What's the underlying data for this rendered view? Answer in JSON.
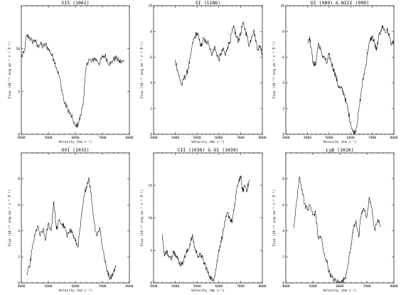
{
  "figure": {
    "xlabel": "Velocity (km s⁻¹)",
    "ylabel": "Flux (10⁻¹³ erg cm⁻² s⁻¹ Å⁻¹)"
  },
  "chart_data": [
    {
      "type": "line",
      "title": "SII (1061)",
      "xlim": [
        4000,
        8000
      ],
      "ylim": [
        0,
        15
      ],
      "xticks": [
        "4000",
        "5000",
        "6000",
        "7000",
        "8000"
      ],
      "yticks": [
        "0",
        "5",
        "10"
      ],
      "x": [
        4000,
        4100,
        4200,
        4300,
        4400,
        4500,
        4600,
        4700,
        4800,
        4900,
        5000,
        5100,
        5200,
        5300,
        5400,
        5500,
        5600,
        5700,
        5800,
        5900,
        6000,
        6100,
        6200,
        6300,
        6400,
        6500,
        6600,
        6700,
        6800,
        6900,
        7000,
        7100,
        7200,
        7300,
        7400,
        7500,
        7600,
        7700,
        7800
      ],
      "y": [
        9.0,
        9.5,
        11.5,
        11.3,
        10.8,
        11.0,
        10.2,
        10.6,
        10.2,
        10.5,
        10.0,
        9.4,
        8.8,
        7.8,
        6.8,
        5.2,
        3.6,
        3.1,
        2.4,
        1.8,
        0.9,
        1.2,
        2.2,
        4.0,
        7.8,
        8.8,
        8.4,
        8.9,
        8.6,
        8.3,
        9.0,
        9.2,
        8.5,
        8.2,
        8.7,
        8.9,
        8.6,
        8.4,
        8.5
      ]
    },
    {
      "type": "line",
      "title": "SI (1186)",
      "xlim": [
        3000,
        8000
      ],
      "ylim": [
        0,
        10
      ],
      "xticks": [
        "3000",
        "4000",
        "5000",
        "6000",
        "7000",
        "8000"
      ],
      "yticks": [
        "0",
        "2",
        "4",
        "6",
        "8",
        "10"
      ],
      "x": [
        4000,
        4100,
        4200,
        4300,
        4400,
        4500,
        4600,
        4700,
        4800,
        4900,
        5000,
        5100,
        5200,
        5300,
        5400,
        5500,
        5600,
        5700,
        5800,
        5900,
        6000,
        6100,
        6200,
        6300,
        6400,
        6500,
        6600,
        6700,
        6800,
        6900,
        7000,
        7100,
        7200,
        7300,
        7400,
        7500,
        7600,
        7700,
        7800,
        7900,
        8000
      ],
      "y": [
        5.8,
        5.0,
        4.3,
        3.8,
        4.4,
        4.6,
        5.2,
        6.0,
        7.1,
        7.6,
        7.9,
        7.3,
        6.8,
        7.5,
        7.1,
        7.3,
        6.6,
        6.2,
        6.8,
        6.3,
        5.8,
        6.3,
        6.6,
        6.1,
        6.8,
        7.2,
        7.9,
        8.3,
        7.6,
        7.3,
        7.8,
        8.6,
        8.2,
        7.6,
        6.9,
        7.6,
        8.1,
        7.3,
        6.6,
        6.9,
        6.2
      ]
    },
    {
      "type": "line",
      "title": "OI (989) & NIII (990)",
      "xlim": [
        3000,
        8000
      ],
      "ylim": [
        0,
        10
      ],
      "xticks": [
        "3000",
        "4000",
        "5000",
        "6000",
        "7000",
        "8000"
      ],
      "yticks": [
        "0",
        "2",
        "4",
        "6",
        "8",
        "10"
      ],
      "x": [
        4000,
        4100,
        4200,
        4300,
        4400,
        4500,
        4600,
        4700,
        4800,
        4900,
        5000,
        5100,
        5200,
        5300,
        5400,
        5500,
        5600,
        5700,
        5800,
        5900,
        6000,
        6100,
        6200,
        6300,
        6400,
        6500,
        6600,
        6700,
        6800,
        6900,
        7000,
        7100,
        7200,
        7300,
        7400,
        7500,
        7600,
        7700,
        7800,
        7900,
        8000
      ],
      "y": [
        7.1,
        7.6,
        6.3,
        5.3,
        5.6,
        7.1,
        6.6,
        6.1,
        5.9,
        5.5,
        6.2,
        5.6,
        5.1,
        4.6,
        3.9,
        3.6,
        3.5,
        3.1,
        2.4,
        1.7,
        0.9,
        0.2,
        0.1,
        0.9,
        2.1,
        3.5,
        4.5,
        5.4,
        6.6,
        7.3,
        7.6,
        7.1,
        6.5,
        7.6,
        8.1,
        8.4,
        7.9,
        8.1,
        7.6,
        6.9,
        7.3
      ]
    },
    {
      "type": "line",
      "title": "OVI (1032)",
      "xlim": [
        4000,
        8000
      ],
      "ylim": [
        0,
        10
      ],
      "xticks": [
        "4000",
        "5000",
        "6000",
        "7000",
        "8000"
      ],
      "yticks": [
        "0",
        "2",
        "4",
        "6",
        "8"
      ],
      "x": [
        4200,
        4300,
        4400,
        4500,
        4600,
        4700,
        4800,
        4900,
        5000,
        5100,
        5200,
        5300,
        5400,
        5500,
        5600,
        5700,
        5800,
        5900,
        6000,
        6100,
        6200,
        6300,
        6400,
        6500,
        6600,
        6700,
        6800,
        6900,
        7000,
        7100,
        7200,
        7300,
        7400,
        7500
      ],
      "y": [
        0.6,
        1.2,
        2.6,
        3.6,
        4.4,
        3.6,
        4.1,
        3.3,
        4.6,
        4.0,
        6.3,
        4.1,
        4.8,
        4.5,
        4.3,
        3.5,
        4.2,
        3.8,
        3.2,
        2.8,
        4.6,
        6.3,
        7.4,
        8.1,
        6.5,
        4.6,
        3.6,
        4.3,
        2.8,
        1.6,
        0.8,
        0.4,
        0.8,
        1.2
      ]
    },
    {
      "type": "line",
      "title": "CII (1036) & OI (1039)",
      "xlim": [
        3000,
        8000
      ],
      "ylim": [
        0,
        20
      ],
      "xticks": [
        "3000",
        "4000",
        "5000",
        "6000",
        "7000",
        "8000"
      ],
      "yticks": [
        "0",
        "5",
        "10",
        "15"
      ],
      "x": [
        3400,
        3500,
        3600,
        3700,
        3800,
        3900,
        4000,
        4100,
        4200,
        4300,
        4400,
        4500,
        4600,
        4700,
        4800,
        4900,
        5000,
        5100,
        5200,
        5300,
        5400,
        5500,
        5600,
        5700,
        5800,
        5900,
        6000,
        6100,
        6200,
        6300,
        6400,
        6500,
        6600,
        6700,
        6800,
        6900,
        7000,
        7100,
        7200,
        7300,
        7400
      ],
      "y": [
        7.5,
        4.1,
        5.0,
        3.9,
        3.7,
        4.9,
        4.6,
        3.7,
        3.1,
        2.8,
        3.7,
        4.6,
        5.1,
        6.4,
        7.1,
        5.2,
        4.5,
        4.1,
        4.3,
        3.2,
        2.6,
        1.5,
        1.0,
        0.3,
        1.1,
        2.8,
        5.1,
        6.3,
        8.0,
        9.5,
        10.7,
        10.1,
        9.3,
        11.2,
        13.8,
        15.6,
        16.4,
        14.0,
        15.1,
        14.3,
        15.9
      ]
    },
    {
      "type": "line",
      "title": "Lyβ (1026)",
      "xlim": [
        4000,
        8000
      ],
      "ylim": [
        0,
        10
      ],
      "xticks": [
        "4000",
        "5000",
        "6000",
        "7000",
        "8000"
      ],
      "yticks": [
        "0",
        "2",
        "4",
        "6",
        "8"
      ],
      "x": [
        4300,
        4400,
        4500,
        4600,
        4700,
        4800,
        4900,
        5000,
        5100,
        5200,
        5300,
        5400,
        5500,
        5600,
        5700,
        5800,
        5900,
        6000,
        6100,
        6200,
        6300,
        6400,
        6500,
        6600,
        6700,
        6800,
        6900,
        7000,
        7100,
        7200,
        7300,
        7400,
        7500
      ],
      "y": [
        4.2,
        6.3,
        8.1,
        7.2,
        6.1,
        5.6,
        6.0,
        5.2,
        5.4,
        3.4,
        3.6,
        2.3,
        1.8,
        0.9,
        0.4,
        0.2,
        0.1,
        0.0,
        0.1,
        0.4,
        1.5,
        2.6,
        4.2,
        4.8,
        3.5,
        5.4,
        5.6,
        5.1,
        6.6,
        5.4,
        4.0,
        4.9,
        4.3
      ]
    }
  ]
}
